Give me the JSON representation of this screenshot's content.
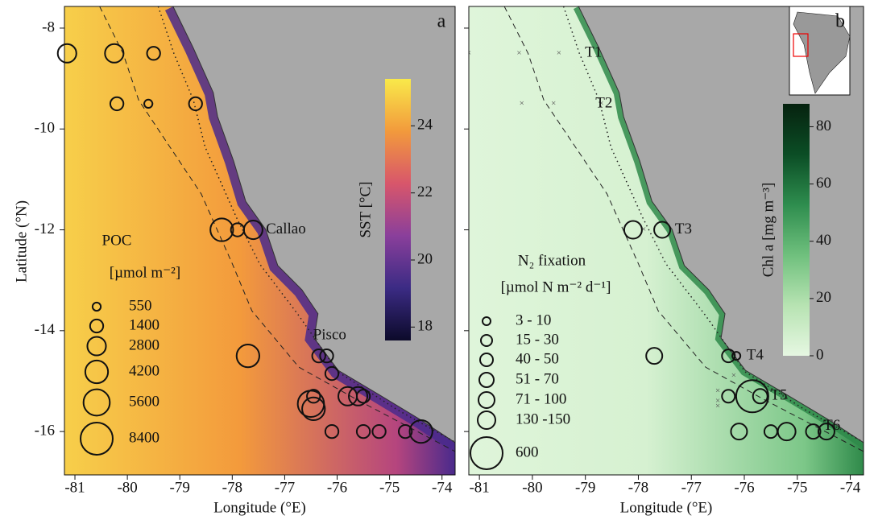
{
  "chart_data": [
    {
      "type": "bubble_map",
      "panel_label": "a",
      "xlabel": "Longitude (°E)",
      "ylabel": "Latitude (°N)",
      "xlim": [
        -81.2,
        -73.75
      ],
      "ylim": [
        -16.86,
        -7.57
      ],
      "xticks": [
        -81,
        -80,
        -79,
        -78,
        -77,
        -76,
        -75,
        -74
      ],
      "yticks": [
        -8,
        -10,
        -12,
        -14,
        -16
      ],
      "annotations": [
        "Callao",
        "Pisco"
      ],
      "edgecolor": "#111111",
      "field_colors": [
        "#f7cf4a",
        "#f39a3c",
        "#b5457e",
        "#4a2a8c"
      ],
      "colorbar": {
        "label": "SST [°C]",
        "lim": [
          17.6,
          25.4
        ],
        "ticks": [
          18,
          20,
          22,
          24
        ],
        "colors": [
          "#0c0a2a",
          "#3b2b84",
          "#8a3f9b",
          "#d8566b",
          "#f29a3c",
          "#f9e94a"
        ]
      },
      "size_legend": {
        "title": "POC",
        "units": "[µmol m⁻²]",
        "sizes": [
          550,
          1400,
          2800,
          4200,
          5600,
          8400
        ]
      },
      "points": {
        "lon": [
          -81.15,
          -80.25,
          -79.5,
          -80.2,
          -79.6,
          -78.7,
          -78.2,
          -77.9,
          -77.6,
          -77.7,
          -76.35,
          -76.2,
          -76.1,
          -76.45,
          -76.5,
          -76.45,
          -75.8,
          -75.6,
          -75.5,
          -76.1,
          -75.5,
          -75.2,
          -74.7,
          -74.4
        ],
        "lat": [
          -8.5,
          -8.5,
          -8.5,
          -9.5,
          -9.5,
          -9.5,
          -12,
          -12,
          -12,
          -14.5,
          -14.5,
          -14.5,
          -14.85,
          -15.3,
          -15.45,
          -15.55,
          -15.3,
          -15.3,
          -15.3,
          -16,
          -16,
          -16,
          -16,
          -16
        ],
        "values": [
          2800,
          2800,
          1400,
          1400,
          550,
          1400,
          4200,
          1400,
          2800,
          4200,
          1400,
          1400,
          1400,
          1400,
          5600,
          4200,
          2800,
          2800,
          1400,
          1400,
          1400,
          1400,
          1400,
          4200
        ]
      }
    },
    {
      "type": "bubble_map",
      "panel_label": "b",
      "xlabel": "Longitude (°E)",
      "xlim": [
        -81.2,
        -73.75
      ],
      "ylim": [
        -16.86,
        -7.57
      ],
      "xticks": [
        -81,
        -80,
        -79,
        -78,
        -77,
        -76,
        -75,
        -74
      ],
      "yticks": [
        -8,
        -10,
        -12,
        -14,
        -16
      ],
      "annotations": [
        "T1",
        "T2",
        "T3",
        "T4",
        "T5",
        "T6"
      ],
      "edgecolor": "#111111",
      "field_colors": [
        "#dff5da",
        "#d6f1d1",
        "#7cc788",
        "#2f8a4a"
      ],
      "colorbar": {
        "label": "Chl a [mg m⁻³]",
        "lim": [
          0,
          88
        ],
        "ticks": [
          0,
          20,
          40,
          60,
          80
        ],
        "colors": [
          "#e6f7e2",
          "#b7e3b2",
          "#6fc07d",
          "#2e8d4e",
          "#0b4d25",
          "#06220f"
        ]
      },
      "size_legend": {
        "title": "N₂ fixation",
        "units": "[µmol N m⁻² d⁻¹]",
        "sizes": [
          {
            "min": 3,
            "max": 10,
            "label": "3 - 10"
          },
          {
            "min": 15,
            "max": 30,
            "label": "15 - 30"
          },
          {
            "min": 40,
            "max": 50,
            "label": "40 - 50"
          },
          {
            "min": 51,
            "max": 70,
            "label": "51 - 70"
          },
          {
            "min": 71,
            "max": 100,
            "label": "71 - 100"
          },
          {
            "min": 130,
            "max": 150,
            "label": "130 -150"
          },
          {
            "min": 600,
            "max": 600,
            "label": "600"
          }
        ]
      },
      "points": {
        "lon": [
          -78.1,
          -77.55,
          -77.7,
          -76.3,
          -76.15,
          -76.3,
          -75.85,
          -75.7,
          -76.1,
          -75.5,
          -75.2,
          -74.7,
          -74.45
        ],
        "lat": [
          -12,
          -12,
          -14.5,
          -14.5,
          -14.5,
          -15.3,
          -15.3,
          -15.3,
          -16,
          -16,
          -16,
          -16,
          -16
        ],
        "values": [
          140,
          80,
          80,
          45,
          8,
          45,
          600,
          60,
          80,
          45,
          140,
          60,
          80
        ]
      }
    }
  ]
}
